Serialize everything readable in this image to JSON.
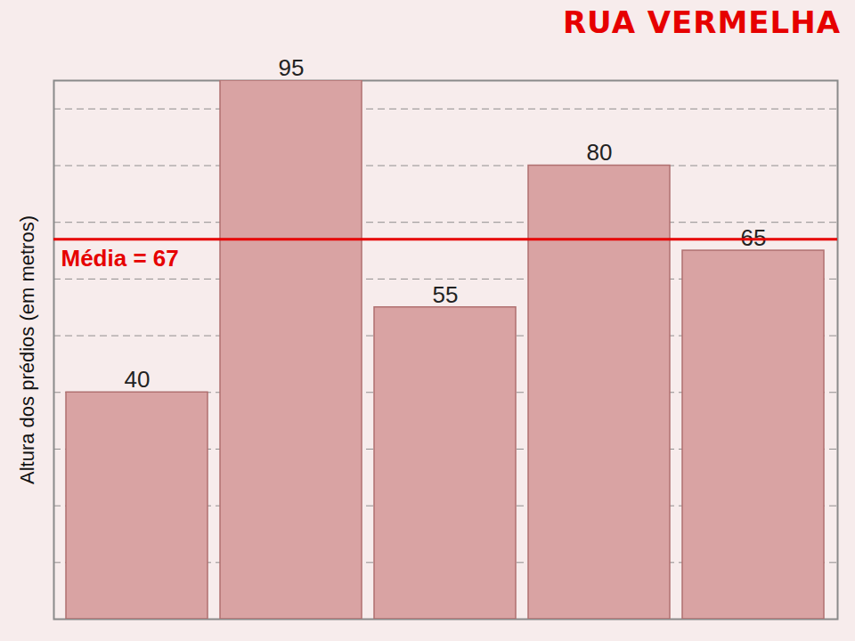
{
  "chart_data": {
    "type": "bar",
    "title": "RUA VERMELHA",
    "y_label": "Altura dos prédios (em metros)",
    "categories": [
      null,
      null,
      null,
      null,
      null
    ],
    "values": [
      40,
      95,
      55,
      80,
      65
    ],
    "color": "#d9a3a3",
    "ylim": [
      0,
      95
    ],
    "yticks": [
      0,
      10,
      20,
      30,
      40,
      50,
      60,
      70,
      80,
      90
    ],
    "grid": true,
    "data_labels": true,
    "tick_labels": false,
    "annotations": [
      {
        "type": "hline",
        "y": 67,
        "text": "Média = 67",
        "color": "#e60000"
      }
    ]
  }
}
